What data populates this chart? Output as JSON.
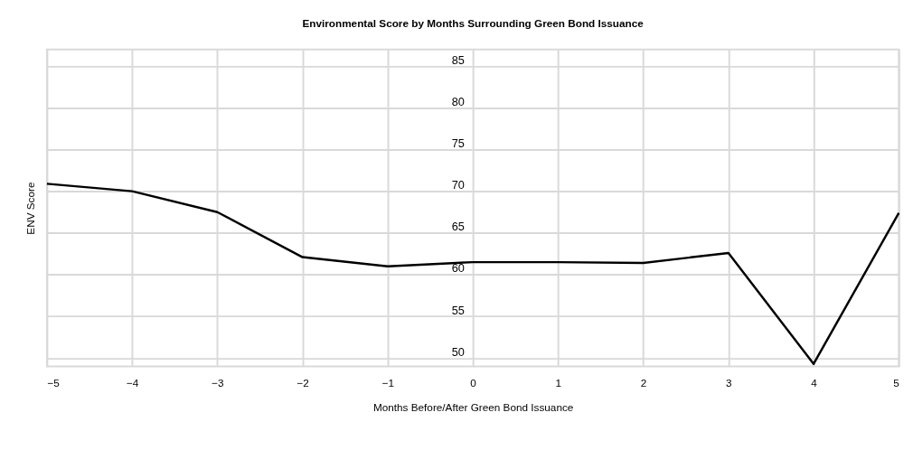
{
  "chart_data": {
    "type": "line",
    "title": "Environmental Score by Months Surrounding Green Bond Issuance",
    "xlabel": "Months Before/After Green Bond Issuance",
    "ylabel": "ENV Score",
    "x": [
      -5,
      -4,
      -3,
      -2,
      -1,
      0,
      1,
      2,
      3,
      4,
      5
    ],
    "series": [
      {
        "color": "#000000",
        "values": [
          70.9,
          70.0,
          67.5,
          62.1,
          61.0,
          61.5,
          61.5,
          61.4,
          62.6,
          49.3,
          67.4
        ]
      }
    ],
    "xlim": [
      -5,
      5
    ],
    "xticks": [
      -5,
      -4,
      -3,
      -2,
      -1,
      0,
      1,
      2,
      3,
      4,
      5
    ],
    "ylim": [
      49,
      87
    ],
    "yticks": [
      50,
      55,
      60,
      65,
      70,
      75,
      80,
      85
    ],
    "grid": true,
    "legend": false,
    "marker": "none",
    "line_style": "solid"
  }
}
